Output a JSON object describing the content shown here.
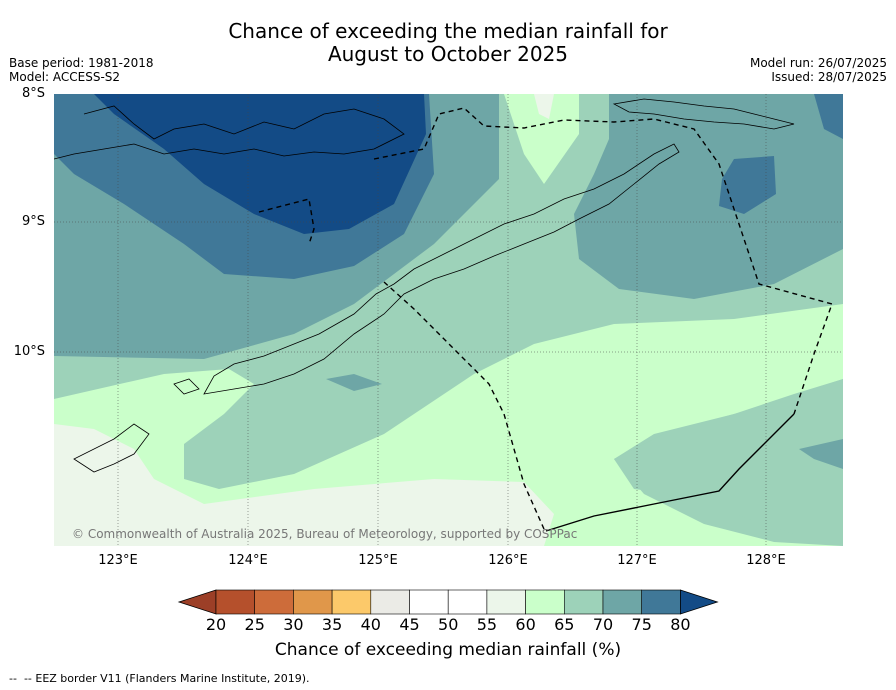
{
  "title_line1": "Chance of exceeding the median rainfall for",
  "title_line2": "August to October 2025",
  "base_period": "Base period: 1981-2018",
  "model": "Model: ACCESS-S2",
  "model_run": "Model run: 26/07/2025",
  "issued": "Issued: 28/07/2025",
  "lat_labels": [
    "8°S",
    "9°S",
    "10°S"
  ],
  "lon_labels": [
    "123°E",
    "124°E",
    "125°E",
    "126°E",
    "127°E",
    "128°E"
  ],
  "copyright": "© Commonwealth of Australia 2025, Bureau of Meteorology, supported by COSPPac",
  "colorbar": {
    "ticks": [
      "20",
      "25",
      "30",
      "35",
      "40",
      "45",
      "50",
      "55",
      "60",
      "65",
      "70",
      "75",
      "80"
    ],
    "colors": [
      "#b5502c",
      "#cd6c3a",
      "#e0974a",
      "#fcc96a",
      "#ebebe6",
      "#ffffff",
      "#ffffff",
      "#ecf6ea",
      "#caffca",
      "#9dd2b9",
      "#6ea6a6",
      "#407898"
    ],
    "under_color": "#9c3f27",
    "over_color": "#134b86",
    "label": "Chance of exceeding median rainfall (%)"
  },
  "eez_legend": "-- EEZ border V11 (Flanders Marine Institute, 2019)."
}
